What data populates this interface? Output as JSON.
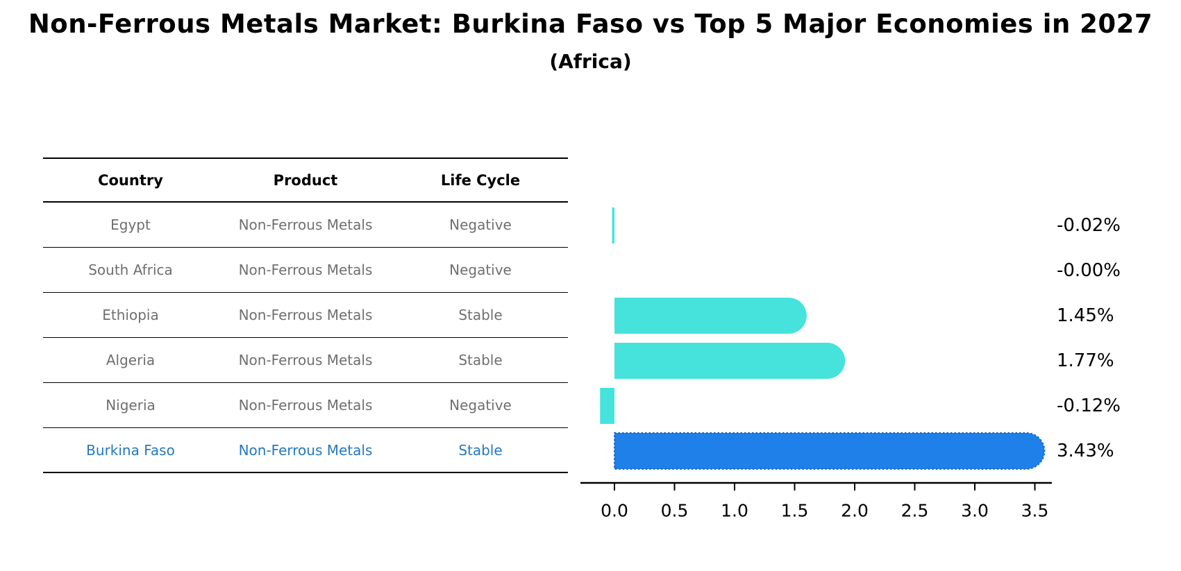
{
  "title": "Non-Ferrous Metals Market: Burkina Faso vs Top 5 Major Economies in 2027",
  "subtitle": "(Africa)",
  "table": {
    "headers": [
      "Country",
      "Product",
      "Life Cycle"
    ],
    "rows": [
      {
        "country": "Egypt",
        "product": "Non-Ferrous Metals",
        "life_cycle": "Negative",
        "highlight": false
      },
      {
        "country": "South Africa",
        "product": "Non-Ferrous Metals",
        "life_cycle": "Negative",
        "highlight": false
      },
      {
        "country": "Ethiopia",
        "product": "Non-Ferrous Metals",
        "life_cycle": "Stable",
        "highlight": false
      },
      {
        "country": "Algeria",
        "product": "Non-Ferrous Metals",
        "life_cycle": "Stable",
        "highlight": false
      },
      {
        "country": "Nigeria",
        "product": "Non-Ferrous Metals",
        "life_cycle": "Negative",
        "highlight": false
      },
      {
        "country": "Burkina Faso",
        "product": "Non-Ferrous Metals",
        "life_cycle": "Stable",
        "highlight": true
      }
    ]
  },
  "chart_data": {
    "type": "bar",
    "orientation": "horizontal",
    "title": "Non-Ferrous Metals Market: Burkina Faso vs Top 5 Major Economies in 2027 (Africa)",
    "categories": [
      "Egypt",
      "South Africa",
      "Ethiopia",
      "Algeria",
      "Nigeria",
      "Burkina Faso"
    ],
    "values": [
      -0.02,
      -0.0,
      1.45,
      1.77,
      -0.12,
      3.43
    ],
    "value_labels": [
      "-0.02%",
      "-0.00%",
      "1.45%",
      "1.77%",
      "-0.12%",
      "3.43%"
    ],
    "x_ticks": [
      "0.0",
      "0.5",
      "1.0",
      "1.5",
      "2.0",
      "2.5",
      "3.0",
      "3.5"
    ],
    "xlim": [
      -0.3,
      3.65
    ],
    "grid": false,
    "legend": "none",
    "highlight_index": 5,
    "unit": "%"
  },
  "colors": {
    "bar": "#45E3DC",
    "highlight_bar": "#1E80E8",
    "highlight_border": "#1565C0",
    "link_text": "#2478BE",
    "table_text": "#6F6F6F",
    "axis": "#000000",
    "background": "#FFFFFF"
  }
}
